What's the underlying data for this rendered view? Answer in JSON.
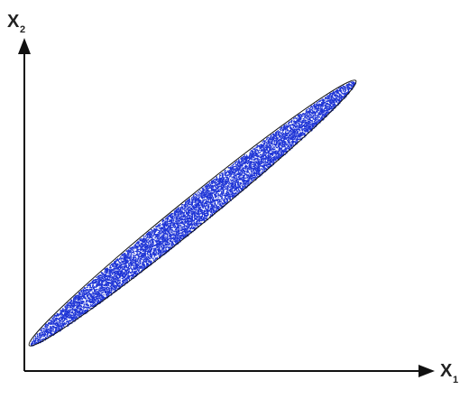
{
  "chart_data": {
    "type": "scatter",
    "title": "",
    "xlabel": "X",
    "xlabel_subscript": "1",
    "ylabel": "X",
    "ylabel_subscript": "2",
    "grid": false,
    "legend": "none",
    "tick_labels": false,
    "series": [
      {
        "point_color": "#1f35d6",
        "outline_color": "#111111",
        "distribution": "bivariate-normal-ellipse",
        "correlation": 0.99,
        "point_count": 9000
      }
    ]
  },
  "colors": {
    "axis": "#111111",
    "points": "#1f35d6",
    "background": "#ffffff"
  }
}
